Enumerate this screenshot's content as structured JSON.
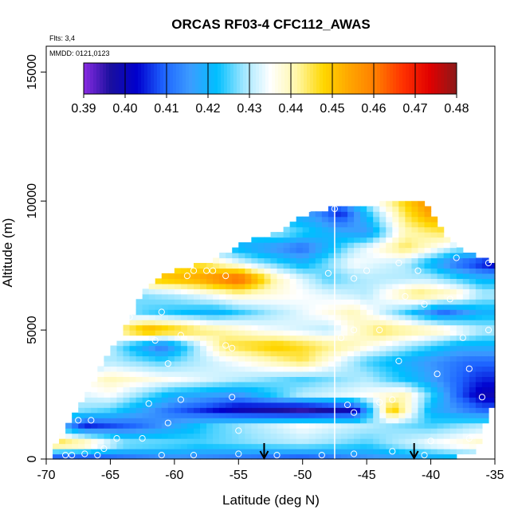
{
  "chart_data": {
    "type": "heatmap",
    "title": "ORCAS RF03-4 CFC112_AWAS",
    "annotation_flights": "Flts: 3,4",
    "annotation_dates": "MMDD: 0121,0123",
    "xlabel": "Latitude (deg N)",
    "ylabel": "Altitude (m)",
    "xlim": [
      -70,
      -35
    ],
    "ylim": [
      0,
      16000
    ],
    "x_ticks": [
      "-70",
      "-65",
      "-60",
      "-55",
      "-50",
      "-45",
      "-40",
      "-35"
    ],
    "y_ticks": [
      "0",
      "5000",
      "10000",
      "15000"
    ],
    "colorbar": {
      "ticks": [
        "0.39",
        "0.40",
        "0.41",
        "0.42",
        "0.43",
        "0.44",
        "0.45",
        "0.46",
        "0.47",
        "0.48"
      ],
      "range": [
        0.39,
        0.48
      ],
      "colors": [
        "#8a2be2",
        "#1a0f9e",
        "#0000cd",
        "#1e64ff",
        "#3c9cff",
        "#00bfff",
        "#9fe6ff",
        "#ffffff",
        "#fff7a8",
        "#ffd700",
        "#ffa500",
        "#ff7b00",
        "#ff3000",
        "#e00000",
        "#8b1a1a"
      ]
    },
    "vertical_line_lat": -47.5,
    "arrows_lat": [
      -53,
      -41.3
    ],
    "envelope": [
      [
        -69.5,
        0,
        500
      ],
      [
        -68,
        0,
        1500
      ],
      [
        -66,
        0,
        3300
      ],
      [
        -64,
        0,
        5000
      ],
      [
        -62,
        0,
        6800
      ],
      [
        -60,
        0,
        7300
      ],
      [
        -57,
        0,
        7700
      ],
      [
        -55,
        0,
        8300
      ],
      [
        -52,
        0,
        8800
      ],
      [
        -50,
        0,
        9400
      ],
      [
        -47,
        0,
        9800
      ],
      [
        -44,
        0,
        9900
      ],
      [
        -40.5,
        0,
        10000
      ],
      [
        -39,
        0,
        8800
      ],
      [
        -38,
        100,
        8200
      ],
      [
        -36.5,
        250,
        7900
      ],
      [
        -35.5,
        1800,
        7700
      ],
      [
        -35,
        2400,
        7600
      ]
    ],
    "layers": [
      {
        "alt": 100,
        "values": [
          [
            -70,
            0.41
          ],
          [
            -66,
            0.41
          ],
          [
            -60,
            0.415
          ],
          [
            -50,
            0.41
          ],
          [
            -45,
            0.415
          ],
          [
            -40,
            0.42
          ],
          [
            -36,
            0.425
          ]
        ]
      },
      {
        "alt": 600,
        "values": [
          [
            -70,
            0.45
          ],
          [
            -67,
            0.445
          ],
          [
            -64,
            0.43
          ],
          [
            -58,
            0.425
          ],
          [
            -50,
            0.43
          ],
          [
            -45,
            0.425
          ],
          [
            -40,
            0.435
          ],
          [
            -36,
            0.44
          ]
        ]
      },
      {
        "alt": 1300,
        "values": [
          [
            -70,
            0.43
          ],
          [
            -67,
            0.405
          ],
          [
            -63,
            0.41
          ],
          [
            -57,
            0.425
          ],
          [
            -50,
            0.435
          ],
          [
            -45,
            0.43
          ],
          [
            -40,
            0.425
          ],
          [
            -36,
            0.43
          ]
        ]
      },
      {
        "alt": 1900,
        "values": [
          [
            -70,
            0.43
          ],
          [
            -65,
            0.425
          ],
          [
            -60,
            0.41
          ],
          [
            -55,
            0.4
          ],
          [
            -50,
            0.395
          ],
          [
            -46,
            0.4
          ],
          [
            -43,
            0.45
          ],
          [
            -40,
            0.42
          ],
          [
            -36,
            0.41
          ]
        ]
      },
      {
        "alt": 2500,
        "values": [
          [
            -70,
            0.43
          ],
          [
            -65,
            0.435
          ],
          [
            -60,
            0.42
          ],
          [
            -55,
            0.415
          ],
          [
            -50,
            0.43
          ],
          [
            -45,
            0.435
          ],
          [
            -42,
            0.44
          ],
          [
            -38,
            0.41
          ],
          [
            -36,
            0.4
          ]
        ]
      },
      {
        "alt": 3100,
        "values": [
          [
            -70,
            0.43
          ],
          [
            -65,
            0.44
          ],
          [
            -60,
            0.435
          ],
          [
            -55,
            0.43
          ],
          [
            -50,
            0.425
          ],
          [
            -45,
            0.43
          ],
          [
            -41,
            0.42
          ],
          [
            -38,
            0.41
          ],
          [
            -36,
            0.405
          ]
        ]
      },
      {
        "alt": 3800,
        "values": [
          [
            -70,
            0.42
          ],
          [
            -65,
            0.43
          ],
          [
            -61,
            0.425
          ],
          [
            -55,
            0.435
          ],
          [
            -50,
            0.445
          ],
          [
            -45,
            0.425
          ],
          [
            -40,
            0.415
          ],
          [
            -37,
            0.41
          ]
        ]
      },
      {
        "alt": 4400,
        "values": [
          [
            -70,
            0.42
          ],
          [
            -65,
            0.43
          ],
          [
            -61,
            0.41
          ],
          [
            -56,
            0.445
          ],
          [
            -52,
            0.45
          ],
          [
            -46,
            0.44
          ],
          [
            -42,
            0.43
          ],
          [
            -38,
            0.42
          ]
        ]
      },
      {
        "alt": 5000,
        "values": [
          [
            -70,
            0.42
          ],
          [
            -65,
            0.44
          ],
          [
            -62,
            0.455
          ],
          [
            -58,
            0.445
          ],
          [
            -53,
            0.435
          ],
          [
            -48,
            0.43
          ],
          [
            -44,
            0.445
          ],
          [
            -39,
            0.44
          ],
          [
            -36,
            0.43
          ]
        ]
      },
      {
        "alt": 5700,
        "values": [
          [
            -70,
            0.42
          ],
          [
            -65,
            0.43
          ],
          [
            -62,
            0.425
          ],
          [
            -57,
            0.42
          ],
          [
            -52,
            0.43
          ],
          [
            -46,
            0.44
          ],
          [
            -42,
            0.425
          ],
          [
            -39,
            0.41
          ],
          [
            -36,
            0.42
          ]
        ]
      },
      {
        "alt": 6400,
        "values": [
          [
            -70,
            0.42
          ],
          [
            -65,
            0.425
          ],
          [
            -60,
            0.43
          ],
          [
            -55,
            0.44
          ],
          [
            -50,
            0.435
          ],
          [
            -45,
            0.43
          ],
          [
            -41,
            0.445
          ],
          [
            -38,
            0.44
          ],
          [
            -36,
            0.43
          ]
        ]
      },
      {
        "alt": 7000,
        "values": [
          [
            -70,
            0.43
          ],
          [
            -65,
            0.425
          ],
          [
            -62,
            0.45
          ],
          [
            -58,
            0.455
          ],
          [
            -55,
            0.465
          ],
          [
            -52,
            0.44
          ],
          [
            -48,
            0.425
          ],
          [
            -45,
            0.43
          ],
          [
            -40,
            0.43
          ],
          [
            -36,
            0.42
          ]
        ]
      },
      {
        "alt": 7600,
        "values": [
          [
            -70,
            0.43
          ],
          [
            -62,
            0.44
          ],
          [
            -58,
            0.445
          ],
          [
            -54,
            0.43
          ],
          [
            -50,
            0.42
          ],
          [
            -46,
            0.435
          ],
          [
            -42,
            0.43
          ],
          [
            -38,
            0.41
          ],
          [
            -35,
            0.4
          ]
        ]
      },
      {
        "alt": 8200,
        "values": [
          [
            -70,
            0.43
          ],
          [
            -60,
            0.43
          ],
          [
            -55,
            0.42
          ],
          [
            -50,
            0.41
          ],
          [
            -46,
            0.43
          ],
          [
            -42,
            0.445
          ],
          [
            -38,
            0.43
          ],
          [
            -35,
            0.43
          ]
        ]
      },
      {
        "alt": 8800,
        "values": [
          [
            -70,
            0.43
          ],
          [
            -55,
            0.425
          ],
          [
            -52,
            0.43
          ],
          [
            -48,
            0.42
          ],
          [
            -45,
            0.415
          ],
          [
            -42,
            0.44
          ],
          [
            -39,
            0.445
          ],
          [
            -35,
            0.44
          ]
        ]
      },
      {
        "alt": 9500,
        "values": [
          [
            -70,
            0.43
          ],
          [
            -52,
            0.42
          ],
          [
            -49,
            0.415
          ],
          [
            -47,
            0.405
          ],
          [
            -44,
            0.43
          ],
          [
            -42,
            0.445
          ],
          [
            -40,
            0.455
          ],
          [
            -35,
            0.44
          ]
        ]
      },
      {
        "alt": 10200,
        "values": [
          [
            -70,
            0.43
          ],
          [
            -48,
            0.41
          ],
          [
            -44,
            0.44
          ],
          [
            -40,
            0.46
          ],
          [
            -35,
            0.44
          ]
        ]
      }
    ],
    "points": [
      [
        -68.5,
        150
      ],
      [
        -68,
        150
      ],
      [
        -67,
        200
      ],
      [
        -66,
        150
      ],
      [
        -65.5,
        400
      ],
      [
        -64.5,
        800
      ],
      [
        -62.5,
        800
      ],
      [
        -61,
        150
      ],
      [
        -58.5,
        150
      ],
      [
        -55,
        200
      ],
      [
        -52,
        150
      ],
      [
        -48.5,
        150
      ],
      [
        -46,
        200
      ],
      [
        -43,
        300
      ],
      [
        -40.5,
        150
      ],
      [
        -40,
        700
      ],
      [
        -37,
        800
      ],
      [
        -67.5,
        1500
      ],
      [
        -66.5,
        1500
      ],
      [
        -62,
        2150
      ],
      [
        -60.5,
        1400
      ],
      [
        -59.5,
        2300
      ],
      [
        -55.5,
        2400
      ],
      [
        -55,
        1100
      ],
      [
        -46.5,
        2100
      ],
      [
        -46,
        1800
      ],
      [
        -44,
        2200
      ],
      [
        -43,
        2300
      ],
      [
        -39.5,
        3300
      ],
      [
        -37,
        3500
      ],
      [
        -36,
        2400
      ],
      [
        -64.5,
        5600
      ],
      [
        -63.5,
        5500
      ],
      [
        -61.5,
        4600
      ],
      [
        -61,
        5700
      ],
      [
        -60.5,
        3700
      ],
      [
        -59.5,
        4800
      ],
      [
        -56,
        4400
      ],
      [
        -55.5,
        4300
      ],
      [
        -47,
        4700
      ],
      [
        -46,
        5000
      ],
      [
        -44,
        5000
      ],
      [
        -42.5,
        3800
      ],
      [
        -40.5,
        6000
      ],
      [
        -38.5,
        6200
      ],
      [
        -37.5,
        4700
      ],
      [
        -35.5,
        5000
      ],
      [
        -64,
        7100
      ],
      [
        -59,
        7100
      ],
      [
        -58.5,
        7300
      ],
      [
        -57.5,
        7300
      ],
      [
        -57,
        7300
      ],
      [
        -56,
        7100
      ],
      [
        -48,
        7200
      ],
      [
        -46,
        7000
      ],
      [
        -45,
        7300
      ],
      [
        -42.5,
        7600
      ],
      [
        -42,
        6300
      ],
      [
        -41,
        7300
      ],
      [
        -38,
        7800
      ],
      [
        -35.5,
        7600
      ],
      [
        -47.5,
        9700
      ],
      [
        -49.5,
        9700
      ]
    ]
  }
}
